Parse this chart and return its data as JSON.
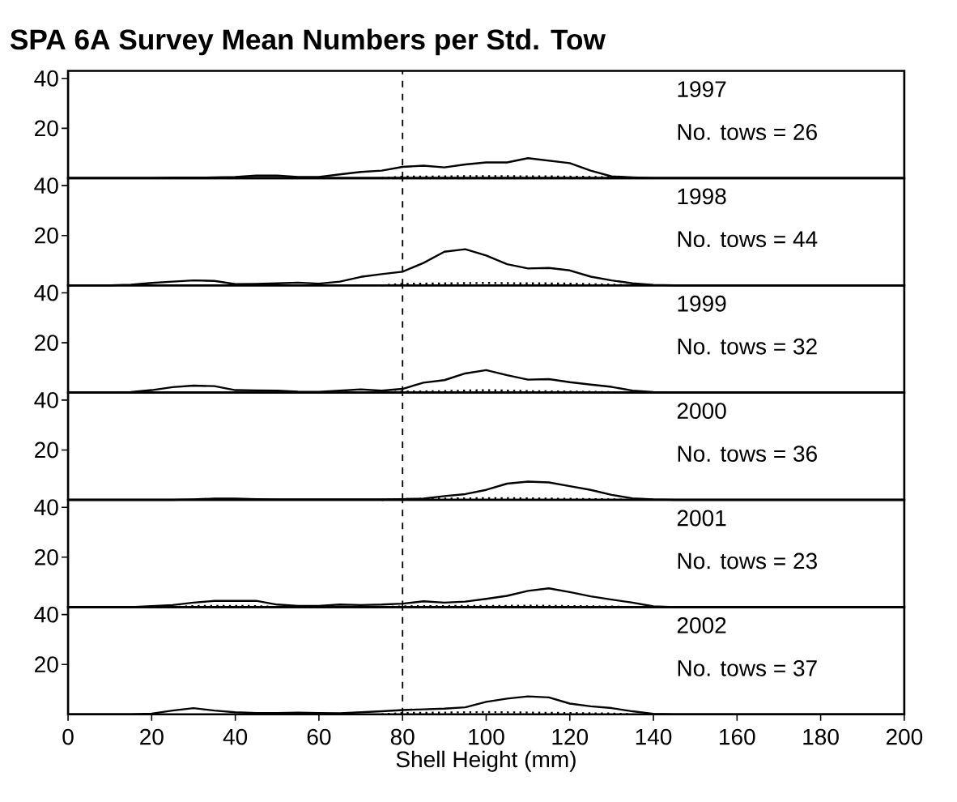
{
  "chart_data": [
    {
      "type": "line",
      "title": "SPA 6A Survey Mean Numbers per Std. Tow",
      "annotations": [
        "1997",
        "No. tows = 26"
      ],
      "tick_labels": "y",
      "xlim": [
        0,
        200
      ],
      "ylim": [
        0,
        43
      ],
      "yticks": [
        20,
        40
      ],
      "ref_lines": [
        {
          "axis": "x",
          "value": 80,
          "line_style": "dashed",
          "color": "#000000"
        }
      ],
      "x": [
        0,
        5,
        10,
        15,
        20,
        25,
        30,
        35,
        40,
        45,
        50,
        55,
        60,
        65,
        70,
        75,
        80,
        85,
        90,
        95,
        100,
        105,
        110,
        115,
        120,
        125,
        130,
        135,
        140,
        145,
        150,
        175,
        200
      ],
      "series": [
        {
          "color": "#000000",
          "line_style": "solid",
          "values": [
            0,
            0,
            0,
            0,
            0,
            0.2,
            0.2,
            0.3,
            0.5,
            1,
            1,
            0.5,
            0.5,
            1.5,
            2.5,
            3,
            4.5,
            5,
            4.3,
            5.5,
            6.3,
            6.3,
            8,
            7,
            6,
            3,
            0.7,
            0.3,
            0,
            0,
            0,
            0,
            0
          ]
        },
        {
          "color": "#000000",
          "line_style": "dotted",
          "x": [
            75,
            80,
            85,
            90,
            95,
            100,
            105,
            110,
            115,
            120,
            125,
            130,
            135
          ],
          "values": [
            0,
            0.6,
            0.6,
            0.7,
            0.8,
            0.8,
            0.8,
            0.7,
            0.7,
            0.6,
            0.5,
            0.3,
            0
          ]
        }
      ]
    },
    {
      "type": "line",
      "annotations": [
        "1998",
        "No. tows = 44"
      ],
      "tick_labels": "y",
      "xlim": [
        0,
        200
      ],
      "ylim": [
        0,
        43
      ],
      "yticks": [
        20,
        40
      ],
      "ref_lines": [
        {
          "axis": "x",
          "value": 80,
          "line_style": "dashed",
          "color": "#000000"
        }
      ],
      "x": [
        0,
        5,
        10,
        15,
        20,
        25,
        30,
        35,
        40,
        45,
        50,
        55,
        60,
        65,
        70,
        75,
        80,
        85,
        90,
        95,
        100,
        105,
        110,
        115,
        120,
        125,
        130,
        135,
        140,
        145,
        150,
        175,
        200
      ],
      "series": [
        {
          "color": "#000000",
          "line_style": "solid",
          "values": [
            0,
            0,
            0,
            0.3,
            1,
            1.5,
            2,
            1.8,
            0.5,
            0.6,
            0.8,
            1.1,
            0.7,
            1.5,
            3.4,
            4.5,
            5.5,
            9,
            13.5,
            14.5,
            12,
            8.5,
            6.8,
            7,
            6,
            3.5,
            2,
            0.8,
            0.2,
            0,
            0,
            0,
            0
          ]
        },
        {
          "color": "#000000",
          "line_style": "dotted",
          "x": [
            75,
            80,
            85,
            90,
            95,
            100,
            105,
            110,
            115,
            120,
            125,
            130,
            135
          ],
          "values": [
            0,
            0.6,
            0.7,
            0.8,
            0.9,
            1,
            0.9,
            0.8,
            0.8,
            0.7,
            0.5,
            0.3,
            0
          ]
        }
      ]
    },
    {
      "type": "line",
      "annotations": [
        "1999",
        "No. tows = 32"
      ],
      "tick_labels": "y",
      "xlim": [
        0,
        200
      ],
      "ylim": [
        0,
        43
      ],
      "yticks": [
        20,
        40
      ],
      "ref_lines": [
        {
          "axis": "x",
          "value": 80,
          "line_style": "dashed",
          "color": "#000000"
        }
      ],
      "x": [
        0,
        5,
        10,
        15,
        20,
        25,
        30,
        35,
        40,
        45,
        50,
        55,
        60,
        65,
        70,
        75,
        80,
        85,
        90,
        95,
        100,
        105,
        110,
        115,
        120,
        125,
        130,
        135,
        140,
        145,
        150,
        175,
        200
      ],
      "series": [
        {
          "color": "#000000",
          "line_style": "solid",
          "values": [
            0,
            0,
            0,
            0.2,
            1,
            2.2,
            2.8,
            2.6,
            1,
            0.9,
            0.8,
            0.4,
            0.3,
            0.8,
            1.3,
            0.8,
            1.5,
            4,
            5,
            7.7,
            9,
            7,
            5.2,
            5.4,
            4.2,
            3.2,
            2.3,
            0.8,
            0.2,
            0,
            0,
            0,
            0
          ]
        },
        {
          "color": "#000000",
          "line_style": "dotted",
          "x": [
            75,
            80,
            85,
            90,
            95,
            100,
            105,
            110,
            115,
            120,
            125,
            130,
            135
          ],
          "values": [
            0,
            0.4,
            0.5,
            0.6,
            0.8,
            1,
            0.8,
            0.6,
            0.5,
            0.4,
            0.3,
            0.2,
            0
          ]
        }
      ]
    },
    {
      "type": "line",
      "annotations": [
        "2000",
        "No. tows = 36"
      ],
      "tick_labels": "y",
      "xlim": [
        0,
        200
      ],
      "ylim": [
        0,
        43
      ],
      "yticks": [
        20,
        40
      ],
      "ref_lines": [
        {
          "axis": "x",
          "value": 80,
          "line_style": "dashed",
          "color": "#000000"
        }
      ],
      "x": [
        0,
        5,
        10,
        15,
        20,
        25,
        30,
        35,
        40,
        45,
        50,
        55,
        60,
        65,
        70,
        75,
        80,
        85,
        90,
        95,
        100,
        105,
        110,
        115,
        120,
        125,
        130,
        135,
        140,
        145,
        150,
        175,
        200
      ],
      "series": [
        {
          "color": "#000000",
          "line_style": "solid",
          "values": [
            0,
            0,
            0,
            0,
            0,
            0,
            0.2,
            0.5,
            0.5,
            0.3,
            0.2,
            0.2,
            0.2,
            0.2,
            0.2,
            0.2,
            0.3,
            0.5,
            1.5,
            2.3,
            4,
            6.5,
            7.3,
            7,
            5.5,
            4,
            2,
            0.6,
            0.2,
            0,
            0,
            0,
            0
          ]
        },
        {
          "color": "#000000",
          "line_style": "dotted",
          "x": [
            75,
            80,
            85,
            90,
            95,
            100,
            105,
            110,
            115,
            120,
            125,
            130,
            135
          ],
          "values": [
            0,
            0.3,
            0.4,
            0.5,
            0.6,
            0.7,
            0.7,
            0.6,
            0.5,
            0.4,
            0.3,
            0.2,
            0
          ]
        }
      ]
    },
    {
      "type": "line",
      "annotations": [
        "2001",
        "No. tows = 23"
      ],
      "tick_labels": "y",
      "xlim": [
        0,
        200
      ],
      "ylim": [
        0,
        43
      ],
      "yticks": [
        20,
        40
      ],
      "ref_lines": [
        {
          "axis": "x",
          "value": 80,
          "line_style": "dashed",
          "color": "#000000"
        }
      ],
      "x": [
        0,
        5,
        10,
        15,
        20,
        25,
        30,
        35,
        40,
        45,
        50,
        55,
        60,
        65,
        70,
        75,
        80,
        85,
        90,
        95,
        100,
        105,
        110,
        115,
        120,
        125,
        130,
        135,
        140,
        145,
        150,
        175,
        200
      ],
      "series": [
        {
          "color": "#000000",
          "line_style": "solid",
          "values": [
            0,
            0,
            0,
            0,
            0.4,
            0.8,
            1.8,
            2.5,
            2.5,
            2.5,
            1,
            0.5,
            0.5,
            1,
            0.8,
            1,
            1.4,
            2.3,
            1.8,
            2.2,
            3.3,
            4.5,
            6.5,
            7.5,
            6,
            4.3,
            3,
            1.8,
            0.3,
            0,
            0,
            0,
            0
          ]
        },
        {
          "color": "#000000",
          "line_style": "dotted",
          "x": [
            25,
            30,
            35,
            40,
            45,
            50,
            75,
            80,
            85,
            90,
            95,
            100,
            105,
            110,
            115,
            120,
            125,
            130,
            135
          ],
          "values": [
            0,
            0.4,
            0.5,
            0.5,
            0.4,
            0,
            0,
            0.3,
            0.4,
            0.4,
            0.5,
            0.5,
            0.5,
            0.6,
            0.5,
            0.4,
            0.3,
            0.2,
            0
          ]
        }
      ]
    },
    {
      "type": "line",
      "annotations": [
        "2002",
        "No. tows = 37"
      ],
      "xlabel": "Shell Height (mm)",
      "xlim": [
        0,
        200
      ],
      "ylim": [
        0,
        43
      ],
      "xticks": [
        0,
        20,
        40,
        60,
        80,
        100,
        120,
        140,
        160,
        180,
        200
      ],
      "yticks": [
        20,
        40
      ],
      "ref_lines": [
        {
          "axis": "x",
          "value": 80,
          "line_style": "dashed",
          "color": "#000000"
        }
      ],
      "x": [
        0,
        5,
        10,
        15,
        20,
        25,
        30,
        35,
        40,
        45,
        50,
        55,
        60,
        65,
        70,
        75,
        80,
        85,
        90,
        95,
        100,
        105,
        110,
        115,
        120,
        125,
        130,
        135,
        140,
        145,
        150,
        175,
        200
      ],
      "series": [
        {
          "color": "#000000",
          "line_style": "solid",
          "values": [
            0,
            0,
            0,
            0,
            0.3,
            1.5,
            2.5,
            1.5,
            0.8,
            0.5,
            0.5,
            0.7,
            0.5,
            0.4,
            0.8,
            1.2,
            1.7,
            2,
            2.3,
            2.8,
            5,
            6.3,
            7.2,
            6.8,
            4.3,
            3.2,
            2.5,
            1.2,
            0.2,
            0,
            0,
            0,
            0
          ]
        },
        {
          "color": "#000000",
          "line_style": "dotted",
          "x": [
            75,
            80,
            85,
            90,
            95,
            100,
            105,
            110,
            115,
            120,
            125,
            130,
            135
          ],
          "values": [
            0,
            0.5,
            0.6,
            0.7,
            0.8,
            0.9,
            0.8,
            0.7,
            0.6,
            0.5,
            0.4,
            0.3,
            0
          ]
        }
      ]
    }
  ]
}
